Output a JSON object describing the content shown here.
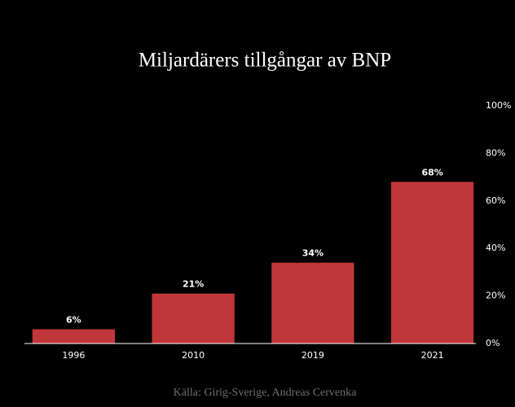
{
  "chart_data": {
    "type": "bar",
    "title": "Miljardärers tillgångar av BNP",
    "categories": [
      "1996",
      "2010",
      "2019",
      "2021"
    ],
    "values": [
      6,
      21,
      34,
      68
    ],
    "value_labels": [
      "6%",
      "21%",
      "34%",
      "68%"
    ],
    "color": "#c0363a",
    "ylim": [
      0,
      100
    ],
    "yticks": [
      {
        "value": 0,
        "label": "0%"
      },
      {
        "value": 20,
        "label": "20%"
      },
      {
        "value": 40,
        "label": "40%"
      },
      {
        "value": 60,
        "label": "60%"
      },
      {
        "value": 80,
        "label": "80%"
      },
      {
        "value": 100,
        "label": "100%"
      }
    ],
    "grid": false,
    "source": "Källa: Girig-Sverige, Andreas Cervenka"
  }
}
